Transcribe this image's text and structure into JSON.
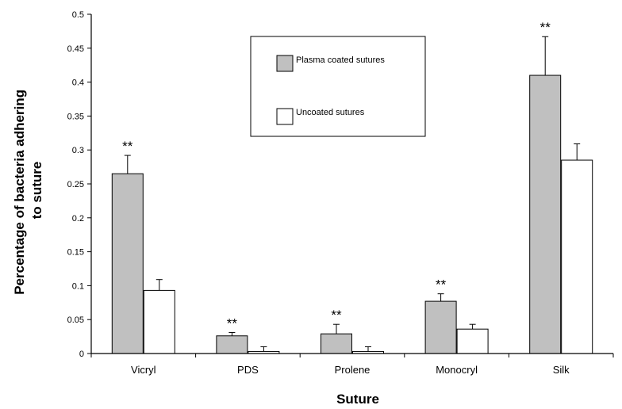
{
  "chart_data": {
    "type": "bar",
    "xlabel": "Suture",
    "ylabel_line1": "Percentage of bacteria adhering",
    "ylabel_line2": "to suture",
    "categories": [
      "Vicryl",
      "PDS",
      "Prolene",
      "Monocryl",
      "Silk"
    ],
    "ylim": [
      0,
      0.5
    ],
    "yticks": [
      "0",
      "0.05",
      "0.1",
      "0.15",
      "0.2",
      "0.25",
      "0.3",
      "0.35",
      "0.4",
      "0.45",
      "0.5"
    ],
    "grid": false,
    "legend_position": "top-center",
    "significance_label": "**",
    "series": [
      {
        "name": "Plasma coated sutures",
        "color": "#c0c0c0",
        "values": [
          0.265,
          0.026,
          0.029,
          0.077,
          0.41
        ],
        "errors": [
          0.027,
          0.005,
          0.014,
          0.011,
          0.057
        ],
        "significant": [
          true,
          true,
          true,
          true,
          true
        ]
      },
      {
        "name": "Uncoated sutures",
        "color": "#ffffff",
        "values": [
          0.093,
          0.003,
          0.003,
          0.036,
          0.285
        ],
        "errors": [
          0.016,
          0.007,
          0.007,
          0.007,
          0.024
        ],
        "significant": [
          false,
          false,
          false,
          false,
          false
        ]
      }
    ]
  }
}
